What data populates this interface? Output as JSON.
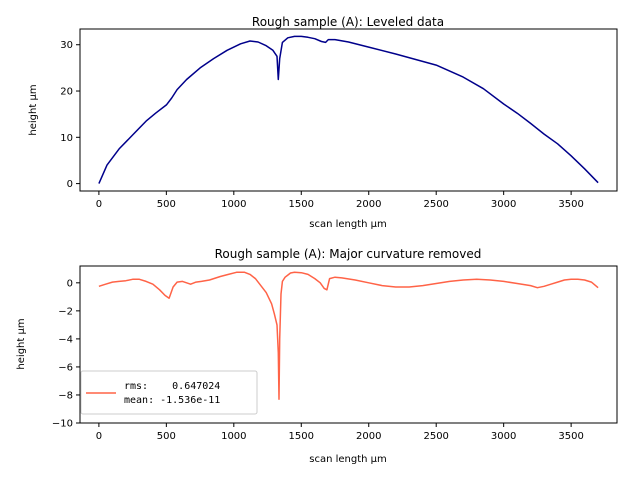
{
  "colors": {
    "top_line": "#00008b",
    "bottom_line": "#ff6347",
    "axes": "#000000"
  },
  "chart_data": [
    {
      "type": "line",
      "title": "Rough sample (A): Leveled data",
      "xlabel": "scan length µm",
      "ylabel": "height µm",
      "xlim": [
        -140,
        3840
      ],
      "ylim": [
        -1.6,
        33.4
      ],
      "xticks": [
        0,
        500,
        1000,
        1500,
        2000,
        2500,
        3000,
        3500
      ],
      "xtick_labels": [
        "0",
        "500",
        "1000",
        "1500",
        "2000",
        "2500",
        "3000",
        "3500"
      ],
      "yticks": [
        0,
        10,
        20,
        30
      ],
      "ytick_labels": [
        "0",
        "10",
        "20",
        "30"
      ],
      "grid": false,
      "series": [
        {
          "x": [
            0,
            60,
            150,
            250,
            350,
            420,
            500,
            540,
            580,
            650,
            750,
            850,
            950,
            1050,
            1120,
            1180,
            1240,
            1290,
            1320,
            1330,
            1340,
            1360,
            1400,
            1450,
            1500,
            1550,
            1600,
            1650,
            1680,
            1700,
            1750,
            1850,
            2000,
            2200,
            2500,
            2700,
            2850,
            3000,
            3100,
            3200,
            3300,
            3400,
            3500,
            3600,
            3700
          ],
          "y": [
            0,
            4,
            7.5,
            10.5,
            13.5,
            15.2,
            17,
            18.5,
            20.3,
            22.5,
            25,
            27,
            28.8,
            30.2,
            30.8,
            30.6,
            29.8,
            28.8,
            27.5,
            22.5,
            27,
            30.5,
            31.5,
            31.8,
            31.8,
            31.6,
            31.3,
            30.7,
            30.5,
            31.1,
            31.1,
            30.6,
            29.5,
            28,
            25.6,
            23,
            20.5,
            17.2,
            15.2,
            13,
            10.7,
            8.6,
            6,
            3.2,
            0.2
          ]
        }
      ]
    },
    {
      "type": "line",
      "title": "Rough sample (A): Major curvature removed",
      "xlabel": "scan length µm",
      "ylabel": "height µm",
      "xlim": [
        -140,
        3840
      ],
      "ylim": [
        -10,
        1.2
      ],
      "xticks": [
        0,
        500,
        1000,
        1500,
        2000,
        2500,
        3000,
        3500
      ],
      "xtick_labels": [
        "0",
        "500",
        "1000",
        "1500",
        "2000",
        "2500",
        "3000",
        "3500"
      ],
      "yticks": [
        -10,
        -8,
        -6,
        -4,
        -2,
        0
      ],
      "ytick_labels": [
        "−10",
        "−8",
        "−6",
        "−4",
        "−2",
        "0"
      ],
      "grid": false,
      "legend_position": "lower-left",
      "legend": [
        "rms:    0.647024",
        "mean: -1.536e-11"
      ],
      "series": [
        {
          "x": [
            0,
            50,
            100,
            150,
            200,
            250,
            300,
            350,
            400,
            450,
            490,
            520,
            550,
            580,
            620,
            680,
            720,
            760,
            820,
            900,
            960,
            1020,
            1080,
            1120,
            1160,
            1200,
            1240,
            1280,
            1300,
            1320,
            1330,
            1335,
            1340,
            1350,
            1360,
            1380,
            1400,
            1420,
            1450,
            1500,
            1550,
            1600,
            1640,
            1670,
            1690,
            1710,
            1750,
            1800,
            1900,
            2000,
            2100,
            2200,
            2300,
            2400,
            2500,
            2600,
            2700,
            2800,
            2900,
            3000,
            3100,
            3200,
            3250,
            3300,
            3350,
            3400,
            3450,
            3500,
            3550,
            3600,
            3650,
            3700
          ],
          "y": [
            -0.25,
            -0.1,
            0.05,
            0.1,
            0.15,
            0.25,
            0.25,
            0.1,
            -0.1,
            -0.5,
            -0.9,
            -1.1,
            -0.3,
            0.05,
            0.1,
            -0.1,
            0.05,
            0.1,
            0.2,
            0.45,
            0.6,
            0.75,
            0.75,
            0.6,
            0.3,
            -0.2,
            -0.7,
            -1.5,
            -2.2,
            -3,
            -5,
            -8.3,
            -4,
            -0.8,
            0.1,
            0.4,
            0.55,
            0.7,
            0.75,
            0.72,
            0.6,
            0.3,
            0,
            -0.4,
            -0.5,
            0.3,
            0.4,
            0.35,
            0.2,
            0,
            -0.2,
            -0.3,
            -0.3,
            -0.2,
            -0.05,
            0.1,
            0.2,
            0.25,
            0.2,
            0.1,
            -0.05,
            -0.2,
            -0.35,
            -0.25,
            -0.1,
            0.05,
            0.2,
            0.25,
            0.25,
            0.2,
            0.05,
            -0.35
          ]
        }
      ]
    }
  ]
}
